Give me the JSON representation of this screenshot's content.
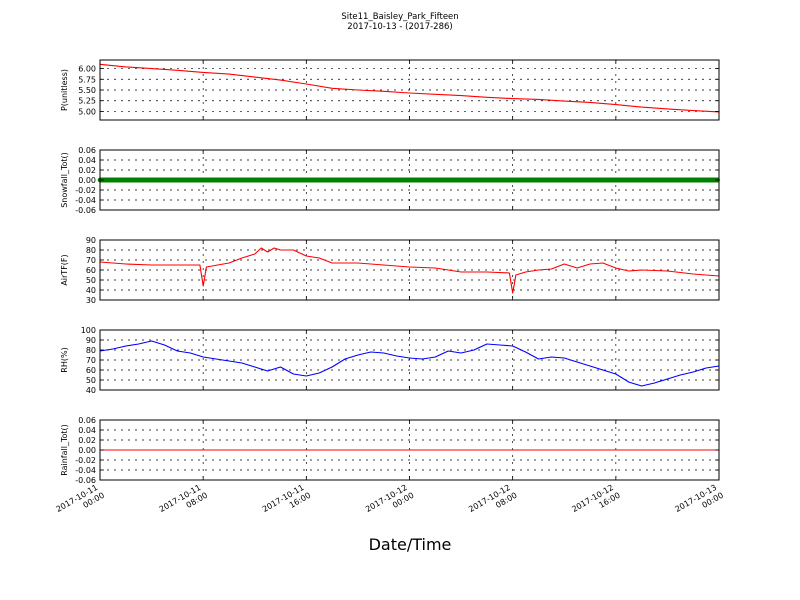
{
  "figure": {
    "title_line1": "Site11_Baisley_Park_Fifteen",
    "title_line2": "2017-10-13 - (2017-286)",
    "xlabel": "Date/Time"
  },
  "chart_data": {
    "type": "line",
    "x_ticks": [
      {
        "l1": "2017-10-11",
        "l2": "00:00"
      },
      {
        "l1": "2017-10-11",
        "l2": "08:00"
      },
      {
        "l1": "2017-10-11",
        "l2": "16:00"
      },
      {
        "l1": "2017-10-12",
        "l2": "00:00"
      },
      {
        "l1": "2017-10-12",
        "l2": "08:00"
      },
      {
        "l1": "2017-10-12",
        "l2": "16:00"
      },
      {
        "l1": "2017-10-13",
        "l2": "00:00"
      }
    ],
    "x_range": [
      "2017-10-11 00:00",
      "2017-10-13 00:00"
    ],
    "panels": [
      {
        "name": "P(unitless)",
        "ylabel": "P(unitless)",
        "ylim": [
          4.8,
          6.2
        ],
        "yticks": [
          "5.00",
          "5.25",
          "5.50",
          "5.75",
          "6.00"
        ],
        "yticks_val": [
          5.0,
          5.25,
          5.5,
          5.75,
          6.0
        ],
        "color": "#ff0000",
        "marker": false,
        "points": [
          [
            "2017-10-11 00:00",
            6.1
          ],
          [
            "2017-10-11 02:00",
            6.04
          ],
          [
            "2017-10-11 04:00",
            6.0
          ],
          [
            "2017-10-11 06:00",
            5.96
          ],
          [
            "2017-10-11 08:00",
            5.91
          ],
          [
            "2017-10-11 10:00",
            5.87
          ],
          [
            "2017-10-11 12:00",
            5.8
          ],
          [
            "2017-10-11 14:00",
            5.73
          ],
          [
            "2017-10-11 16:00",
            5.64
          ],
          [
            "2017-10-11 18:00",
            5.54
          ],
          [
            "2017-10-11 20:00",
            5.5
          ],
          [
            "2017-10-11 22:00",
            5.47
          ],
          [
            "2017-10-12 00:00",
            5.43
          ],
          [
            "2017-10-12 02:00",
            5.4
          ],
          [
            "2017-10-12 04:00",
            5.37
          ],
          [
            "2017-10-12 06:00",
            5.33
          ],
          [
            "2017-10-12 08:00",
            5.3
          ],
          [
            "2017-10-12 10:00",
            5.28
          ],
          [
            "2017-10-12 12:00",
            5.24
          ],
          [
            "2017-10-12 14:00",
            5.21
          ],
          [
            "2017-10-12 16:00",
            5.16
          ],
          [
            "2017-10-12 18:00",
            5.1
          ],
          [
            "2017-10-12 20:00",
            5.06
          ],
          [
            "2017-10-12 22:00",
            5.02
          ],
          [
            "2017-10-13 00:00",
            4.99
          ]
        ]
      },
      {
        "name": "Snowfall_Tot()",
        "ylabel": "Snowfall_Tot()",
        "ylim": [
          -0.06,
          0.06
        ],
        "yticks": [
          "-0.06",
          "-0.04",
          "-0.02",
          "0.00",
          "0.02",
          "0.04",
          "0.06"
        ],
        "yticks_val": [
          -0.06,
          -0.04,
          -0.02,
          0.0,
          0.02,
          0.04,
          0.06
        ],
        "color": "#008000",
        "marker": true,
        "points": [
          [
            "2017-10-11 00:00",
            0.0
          ],
          [
            "2017-10-13 00:00",
            0.0
          ]
        ]
      },
      {
        "name": "AirTF(F)",
        "ylabel": "AirTF(F)",
        "ylim": [
          30,
          90
        ],
        "yticks": [
          "30",
          "40",
          "50",
          "60",
          "70",
          "80",
          "90"
        ],
        "yticks_val": [
          30,
          40,
          50,
          60,
          70,
          80,
          90
        ],
        "color": "#ff0000",
        "marker": false,
        "points": [
          [
            "2017-10-11 00:00",
            68
          ],
          [
            "2017-10-11 02:00",
            66
          ],
          [
            "2017-10-11 04:00",
            65
          ],
          [
            "2017-10-11 06:00",
            65
          ],
          [
            "2017-10-11 07:45",
            65
          ],
          [
            "2017-10-11 08:00",
            44
          ],
          [
            "2017-10-11 08:15",
            63
          ],
          [
            "2017-10-11 10:00",
            67
          ],
          [
            "2017-10-11 11:00",
            72
          ],
          [
            "2017-10-11 12:00",
            76
          ],
          [
            "2017-10-11 12:30",
            82
          ],
          [
            "2017-10-11 13:00",
            78
          ],
          [
            "2017-10-11 13:30",
            82
          ],
          [
            "2017-10-11 14:00",
            80
          ],
          [
            "2017-10-11 15:00",
            80
          ],
          [
            "2017-10-11 16:00",
            74
          ],
          [
            "2017-10-11 17:00",
            72
          ],
          [
            "2017-10-11 18:00",
            67
          ],
          [
            "2017-10-11 20:00",
            67
          ],
          [
            "2017-10-11 22:00",
            65
          ],
          [
            "2017-10-12 00:00",
            63
          ],
          [
            "2017-10-12 02:00",
            62
          ],
          [
            "2017-10-12 04:00",
            58
          ],
          [
            "2017-10-12 06:00",
            58
          ],
          [
            "2017-10-12 07:45",
            57
          ],
          [
            "2017-10-12 08:00",
            37
          ],
          [
            "2017-10-12 08:15",
            55
          ],
          [
            "2017-10-12 09:00",
            58
          ],
          [
            "2017-10-12 10:00",
            60
          ],
          [
            "2017-10-12 11:00",
            61
          ],
          [
            "2017-10-12 12:00",
            66
          ],
          [
            "2017-10-12 13:00",
            62
          ],
          [
            "2017-10-12 14:00",
            66
          ],
          [
            "2017-10-12 15:00",
            67
          ],
          [
            "2017-10-12 16:00",
            62
          ],
          [
            "2017-10-12 17:00",
            59
          ],
          [
            "2017-10-12 18:00",
            60
          ],
          [
            "2017-10-12 20:00",
            59
          ],
          [
            "2017-10-12 22:00",
            56
          ],
          [
            "2017-10-13 00:00",
            54
          ]
        ]
      },
      {
        "name": "RH(%)",
        "ylabel": "RH(%)",
        "ylim": [
          40,
          100
        ],
        "yticks": [
          "40",
          "50",
          "60",
          "70",
          "80",
          "90",
          "100"
        ],
        "yticks_val": [
          40,
          50,
          60,
          70,
          80,
          90,
          100
        ],
        "color": "#0000ff",
        "marker": false,
        "points": [
          [
            "2017-10-11 00:00",
            79
          ],
          [
            "2017-10-11 01:00",
            81
          ],
          [
            "2017-10-11 02:00",
            84
          ],
          [
            "2017-10-11 03:00",
            86
          ],
          [
            "2017-10-11 04:00",
            89
          ],
          [
            "2017-10-11 05:00",
            85
          ],
          [
            "2017-10-11 06:00",
            79
          ],
          [
            "2017-10-11 07:00",
            77
          ],
          [
            "2017-10-11 08:00",
            73
          ],
          [
            "2017-10-11 09:00",
            71
          ],
          [
            "2017-10-11 10:00",
            69
          ],
          [
            "2017-10-11 11:00",
            67
          ],
          [
            "2017-10-11 12:00",
            63
          ],
          [
            "2017-10-11 13:00",
            59
          ],
          [
            "2017-10-11 14:00",
            63
          ],
          [
            "2017-10-11 15:00",
            56
          ],
          [
            "2017-10-11 16:00",
            54
          ],
          [
            "2017-10-11 17:00",
            57
          ],
          [
            "2017-10-11 18:00",
            63
          ],
          [
            "2017-10-11 19:00",
            71
          ],
          [
            "2017-10-11 20:00",
            75
          ],
          [
            "2017-10-11 21:00",
            78
          ],
          [
            "2017-10-11 22:00",
            77
          ],
          [
            "2017-10-11 23:00",
            74
          ],
          [
            "2017-10-12 00:00",
            72
          ],
          [
            "2017-10-12 01:00",
            71
          ],
          [
            "2017-10-12 02:00",
            73
          ],
          [
            "2017-10-12 03:00",
            79
          ],
          [
            "2017-10-12 04:00",
            77
          ],
          [
            "2017-10-12 05:00",
            80
          ],
          [
            "2017-10-12 06:00",
            86
          ],
          [
            "2017-10-12 07:00",
            85
          ],
          [
            "2017-10-12 08:00",
            84
          ],
          [
            "2017-10-12 09:00",
            78
          ],
          [
            "2017-10-12 10:00",
            71
          ],
          [
            "2017-10-12 11:00",
            73
          ],
          [
            "2017-10-12 12:00",
            72
          ],
          [
            "2017-10-12 13:00",
            68
          ],
          [
            "2017-10-12 14:00",
            64
          ],
          [
            "2017-10-12 15:00",
            60
          ],
          [
            "2017-10-12 16:00",
            56
          ],
          [
            "2017-10-12 17:00",
            48
          ],
          [
            "2017-10-12 18:00",
            44
          ],
          [
            "2017-10-12 19:00",
            47
          ],
          [
            "2017-10-12 20:00",
            51
          ],
          [
            "2017-10-12 21:00",
            55
          ],
          [
            "2017-10-12 22:00",
            58
          ],
          [
            "2017-10-12 23:00",
            62
          ],
          [
            "2017-10-13 00:00",
            64
          ]
        ]
      },
      {
        "name": "Rainfall_Tot()",
        "ylabel": "Rainfall_Tot()",
        "ylim": [
          -0.06,
          0.06
        ],
        "yticks": [
          "-0.06",
          "-0.04",
          "-0.02",
          "0.00",
          "0.02",
          "0.04",
          "0.06"
        ],
        "yticks_val": [
          -0.06,
          -0.04,
          -0.02,
          0.0,
          0.02,
          0.04,
          0.06
        ],
        "color": "#ff0000",
        "marker": false,
        "points": [
          [
            "2017-10-11 00:00",
            0.0
          ],
          [
            "2017-10-13 00:00",
            0.0
          ]
        ]
      }
    ],
    "grid": true
  }
}
